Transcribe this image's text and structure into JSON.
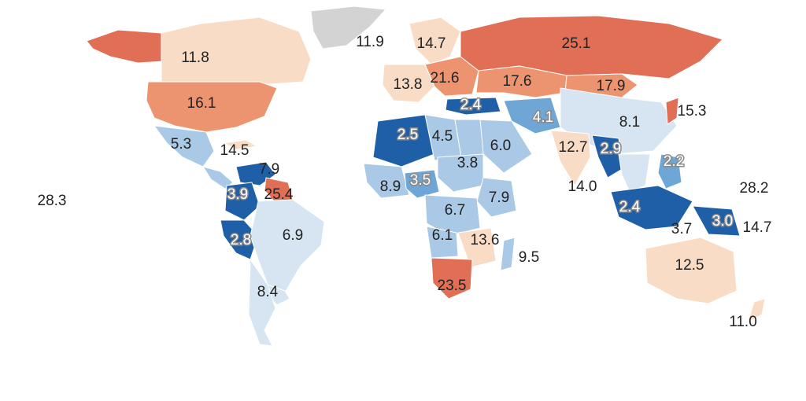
{
  "colors": {
    "no_data": "#d3d3d3",
    "background": "#ffffff",
    "dark_blue": "#1f5fa8",
    "mid_blue": "#6ea6d6",
    "light_blue": "#a9c9e6",
    "pale_blue": "#d6e5f1",
    "pale_orange": "#f9dcc6",
    "light_orange": "#f2b08e",
    "mid_orange": "#ec9470",
    "dark_orange": "#e06f56"
  },
  "map": {
    "type": "choropleth world map",
    "labels": [
      {
        "id": "alaska",
        "value": "",
        "color": "dark_orange"
      },
      {
        "id": "canada",
        "value": "11.8",
        "color": "pale_orange"
      },
      {
        "id": "greenland",
        "value": "11.9",
        "color": "no_data"
      },
      {
        "id": "scandinavia",
        "value": "14.7",
        "color": "pale_orange"
      },
      {
        "id": "russia",
        "value": "25.1",
        "color": "dark_orange"
      },
      {
        "id": "western-europe",
        "value": "13.8",
        "color": "pale_orange"
      },
      {
        "id": "eastern-europe",
        "value": "21.6",
        "color": "mid_orange"
      },
      {
        "id": "central-asia",
        "value": "17.6",
        "color": "mid_orange"
      },
      {
        "id": "mongolia",
        "value": "17.9",
        "color": "mid_orange"
      },
      {
        "id": "japan",
        "value": "15.3",
        "color": "dark_orange"
      },
      {
        "id": "usa",
        "value": "16.1",
        "color": "mid_orange"
      },
      {
        "id": "turkey",
        "value": "2.4",
        "color": "dark_blue"
      },
      {
        "id": "iran",
        "value": "4.1",
        "color": "mid_blue"
      },
      {
        "id": "china",
        "value": "8.1",
        "color": "pale_blue"
      },
      {
        "id": "mexico",
        "value": "5.3",
        "color": "light_blue"
      },
      {
        "id": "cuba",
        "value": "14.5",
        "color": "pale_orange"
      },
      {
        "id": "algeria",
        "value": "2.5",
        "color": "dark_blue"
      },
      {
        "id": "libya",
        "value": "4.5",
        "color": "light_blue"
      },
      {
        "id": "saudi-arabia",
        "value": "6.0",
        "color": "light_blue"
      },
      {
        "id": "india",
        "value": "12.7",
        "color": "pale_orange"
      },
      {
        "id": "myanmar",
        "value": "2.9",
        "color": "dark_blue"
      },
      {
        "id": "philippines",
        "value": "2.2",
        "color": "mid_blue"
      },
      {
        "id": "venezuela",
        "value": "7.9",
        "color": "dark_blue"
      },
      {
        "id": "sudan",
        "value": "3.8",
        "color": "light_blue"
      },
      {
        "id": "ocean-india-south",
        "value": "14.0",
        "color": ""
      },
      {
        "id": "pacific-east",
        "value": "28.2",
        "color": ""
      },
      {
        "id": "pacific-west",
        "value": "28.3",
        "color": ""
      },
      {
        "id": "colombia",
        "value": "3.9",
        "color": "dark_blue"
      },
      {
        "id": "guyana",
        "value": "25.4",
        "color": "dark_orange"
      },
      {
        "id": "west-africa",
        "value": "8.9",
        "color": "light_blue"
      },
      {
        "id": "nigeria",
        "value": "3.5",
        "color": "mid_blue"
      },
      {
        "id": "ethiopia",
        "value": "7.9",
        "color": "light_blue"
      },
      {
        "id": "indonesia",
        "value": "2.4",
        "color": "dark_blue"
      },
      {
        "id": "drc",
        "value": "6.7",
        "color": "light_blue"
      },
      {
        "id": "papua",
        "value": "3.0",
        "color": "dark_blue"
      },
      {
        "id": "timor",
        "value": "3.7",
        "color": "mid_blue"
      },
      {
        "id": "solomon",
        "value": "14.7",
        "color": ""
      },
      {
        "id": "peru",
        "value": "2.8",
        "color": "dark_blue"
      },
      {
        "id": "brazil",
        "value": "6.9",
        "color": "pale_blue"
      },
      {
        "id": "angola",
        "value": "6.1",
        "color": "light_blue"
      },
      {
        "id": "mozambique",
        "value": "13.6",
        "color": "pale_orange"
      },
      {
        "id": "madagascar",
        "value": "9.5",
        "color": "light_blue"
      },
      {
        "id": "australia",
        "value": "12.5",
        "color": "pale_orange"
      },
      {
        "id": "uruguay",
        "value": "8.4",
        "color": "pale_blue"
      },
      {
        "id": "south-africa",
        "value": "23.5",
        "color": "dark_orange"
      },
      {
        "id": "new-zealand",
        "value": "11.0",
        "color": "pale_orange"
      }
    ]
  }
}
